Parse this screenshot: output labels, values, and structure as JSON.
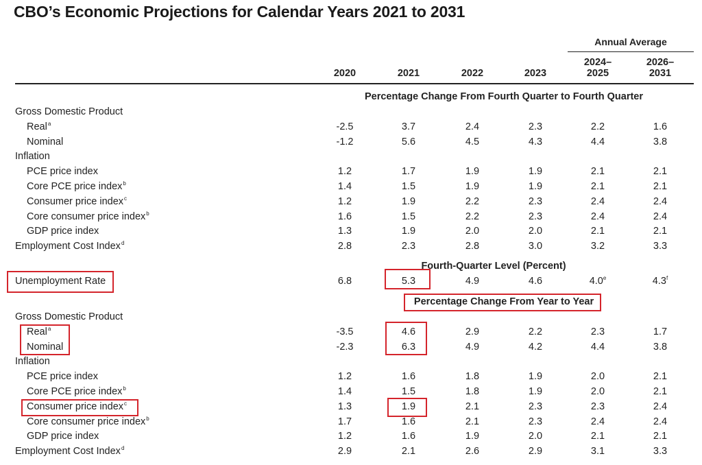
{
  "title": "CBO’s Economic Projections for Calendar Years 2021 to 2031",
  "annual_average_label": "Annual Average",
  "columns": [
    "2020",
    "2021",
    "2022",
    "2023",
    "2024–\n2025",
    "2026–\n2031"
  ],
  "section_q4": "Percentage Change From Fourth Quarter to Fourth Quarter",
  "section_level": "Fourth-Quarter Level (Percent)",
  "section_yoy": "Percentage Change From Year to Year",
  "q4_rows": [
    {
      "label": "Gross Domestic Product",
      "note": "",
      "indent": false,
      "values": []
    },
    {
      "label": "Real",
      "note": "a",
      "indent": true,
      "values": [
        "-2.5",
        "3.7",
        "2.4",
        "2.3",
        "2.2",
        "1.6"
      ]
    },
    {
      "label": "Nominal",
      "note": "",
      "indent": true,
      "values": [
        "-1.2",
        "5.6",
        "4.5",
        "4.3",
        "4.4",
        "3.8"
      ]
    },
    {
      "label": "Inflation",
      "note": "",
      "indent": false,
      "values": []
    },
    {
      "label": "PCE price index",
      "note": "",
      "indent": true,
      "values": [
        "1.2",
        "1.7",
        "1.9",
        "1.9",
        "2.1",
        "2.1"
      ]
    },
    {
      "label": "Core PCE price index",
      "note": "b",
      "indent": true,
      "values": [
        "1.4",
        "1.5",
        "1.9",
        "1.9",
        "2.1",
        "2.1"
      ]
    },
    {
      "label": "Consumer price index",
      "note": "c",
      "indent": true,
      "values": [
        "1.2",
        "1.9",
        "2.2",
        "2.3",
        "2.4",
        "2.4"
      ]
    },
    {
      "label": "Core consumer price index",
      "note": "b",
      "indent": true,
      "values": [
        "1.6",
        "1.5",
        "2.2",
        "2.3",
        "2.4",
        "2.4"
      ]
    },
    {
      "label": "GDP price index",
      "note": "",
      "indent": true,
      "values": [
        "1.3",
        "1.9",
        "2.0",
        "2.0",
        "2.1",
        "2.1"
      ]
    },
    {
      "label": "Employment Cost Index",
      "note": "d",
      "indent": false,
      "values": [
        "2.8",
        "2.3",
        "2.8",
        "3.0",
        "3.2",
        "3.3"
      ]
    }
  ],
  "level_row": {
    "label": "Unemployment Rate",
    "values": [
      "6.8",
      "5.3",
      "4.9",
      "4.6",
      "4.0",
      "4.3"
    ],
    "value_notes": [
      "",
      "",
      "",
      "",
      "e",
      "f"
    ]
  },
  "yoy_rows": [
    {
      "label": "Gross Domestic Product",
      "note": "",
      "indent": false,
      "values": []
    },
    {
      "label": "Real",
      "note": "a",
      "indent": true,
      "values": [
        "-3.5",
        "4.6",
        "2.9",
        "2.2",
        "2.3",
        "1.7"
      ]
    },
    {
      "label": "Nominal",
      "note": "",
      "indent": true,
      "values": [
        "-2.3",
        "6.3",
        "4.9",
        "4.2",
        "4.4",
        "3.8"
      ]
    },
    {
      "label": "Inflation",
      "note": "",
      "indent": false,
      "values": []
    },
    {
      "label": "PCE price index",
      "note": "",
      "indent": true,
      "values": [
        "1.2",
        "1.6",
        "1.8",
        "1.9",
        "2.0",
        "2.1"
      ]
    },
    {
      "label": "Core PCE price index",
      "note": "b",
      "indent": true,
      "values": [
        "1.4",
        "1.5",
        "1.8",
        "1.9",
        "2.0",
        "2.1"
      ]
    },
    {
      "label": "Consumer price index",
      "note": "c",
      "indent": true,
      "values": [
        "1.3",
        "1.9",
        "2.1",
        "2.3",
        "2.3",
        "2.4"
      ]
    },
    {
      "label": "Core consumer price index",
      "note": "b",
      "indent": true,
      "values": [
        "1.7",
        "1.6",
        "2.1",
        "2.3",
        "2.4",
        "2.4"
      ]
    },
    {
      "label": "GDP price index",
      "note": "",
      "indent": true,
      "values": [
        "1.2",
        "1.6",
        "1.9",
        "2.0",
        "2.1",
        "2.1"
      ]
    },
    {
      "label": "Employment Cost Index",
      "note": "d",
      "indent": false,
      "values": [
        "2.9",
        "2.1",
        "2.6",
        "2.9",
        "3.1",
        "3.3"
      ]
    }
  ],
  "highlight_color": "#d4242b"
}
